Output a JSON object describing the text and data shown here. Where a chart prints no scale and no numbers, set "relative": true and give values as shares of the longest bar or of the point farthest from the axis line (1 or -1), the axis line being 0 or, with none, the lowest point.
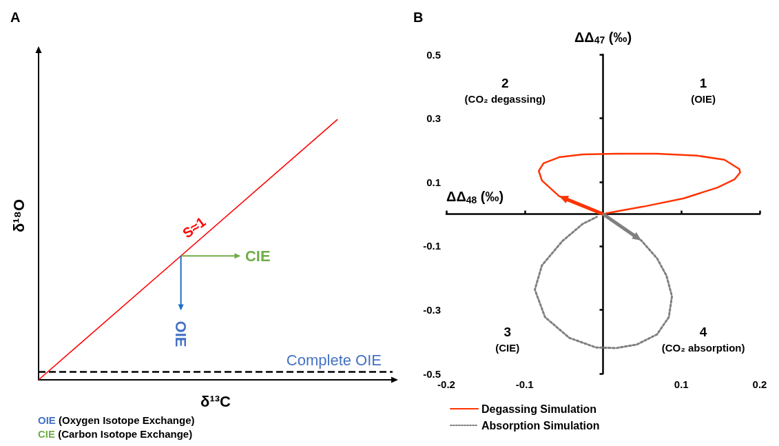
{
  "chart_data": [
    {
      "type": "line",
      "title": "A",
      "xlabel": "δ¹³C",
      "ylabel": "δ¹⁸O",
      "categories": [
        null,
        null
      ],
      "relative": true,
      "marker": "none",
      "legend": false,
      "series": [
        {
          "color": "#ff0000",
          "values": [
            0,
            1
          ]
        }
      ],
      "ref_lines": [
        {
          "axis": "y",
          "value": 0.03,
          "label": "Complete OIE",
          "color": "#000000",
          "line_style": "dashed"
        }
      ],
      "annotations": [
        "S≈1",
        "CIE",
        "OIE",
        "OIE (Oxygen Isotope Exchange)",
        "CIE (Carbon Isotope Exchange)"
      ]
    },
    {
      "type": "line",
      "title": "B",
      "xlabel": "ΔΔ$_{48}$ (‰)",
      "ylabel": "ΔΔ$_{47}$ (‰)",
      "marker": "none",
      "legend": "bottom left",
      "xlim": [
        -0.2,
        0.2
      ],
      "xticks": [
        -0.2,
        -0.1,
        0.1,
        0.2
      ],
      "ylim": [
        -0.5,
        0.5
      ],
      "yticks": [
        -0.5,
        -0.3,
        -0.1,
        0.1,
        0.3,
        0.5
      ],
      "series": [
        {
          "name": "Degassing Simulation",
          "color": "#ff3300",
          "line_style": "solid",
          "x": [
            0,
            -0.056,
            -0.078,
            -0.082,
            -0.076,
            -0.056,
            -0.026,
            0.017,
            0.069,
            0.12,
            0.155,
            0.174,
            0.175,
            0.168,
            0.146,
            0.103,
            0.051,
            0.017,
            0.004
          ],
          "values": [
            0,
            0.056,
            0.105,
            0.135,
            0.159,
            0.178,
            0.187,
            0.189,
            0.189,
            0.183,
            0.17,
            0.141,
            0.13,
            0.109,
            0.083,
            0.049,
            0.023,
            0.008,
            0.002
          ]
        },
        {
          "name": "Absorption Simulation",
          "color": "#808080",
          "line_style": "dotted",
          "x": [
            0,
            0.049,
            0.069,
            0.081,
            0.088,
            0.084,
            0.069,
            0.043,
            0.017,
            -0.009,
            -0.043,
            -0.074,
            -0.087,
            -0.078,
            -0.052,
            -0.026,
            -0.008
          ],
          "values": [
            0,
            -0.083,
            -0.139,
            -0.193,
            -0.258,
            -0.323,
            -0.377,
            -0.409,
            -0.42,
            -0.418,
            -0.388,
            -0.323,
            -0.237,
            -0.161,
            -0.085,
            -0.031,
            -0.009
          ]
        }
      ],
      "annotations": [
        "1",
        "(OIE)",
        "2",
        "(CO₂ degassing)",
        "3",
        "(CIE)",
        "4",
        "(CO₂ absorption)"
      ]
    }
  ]
}
